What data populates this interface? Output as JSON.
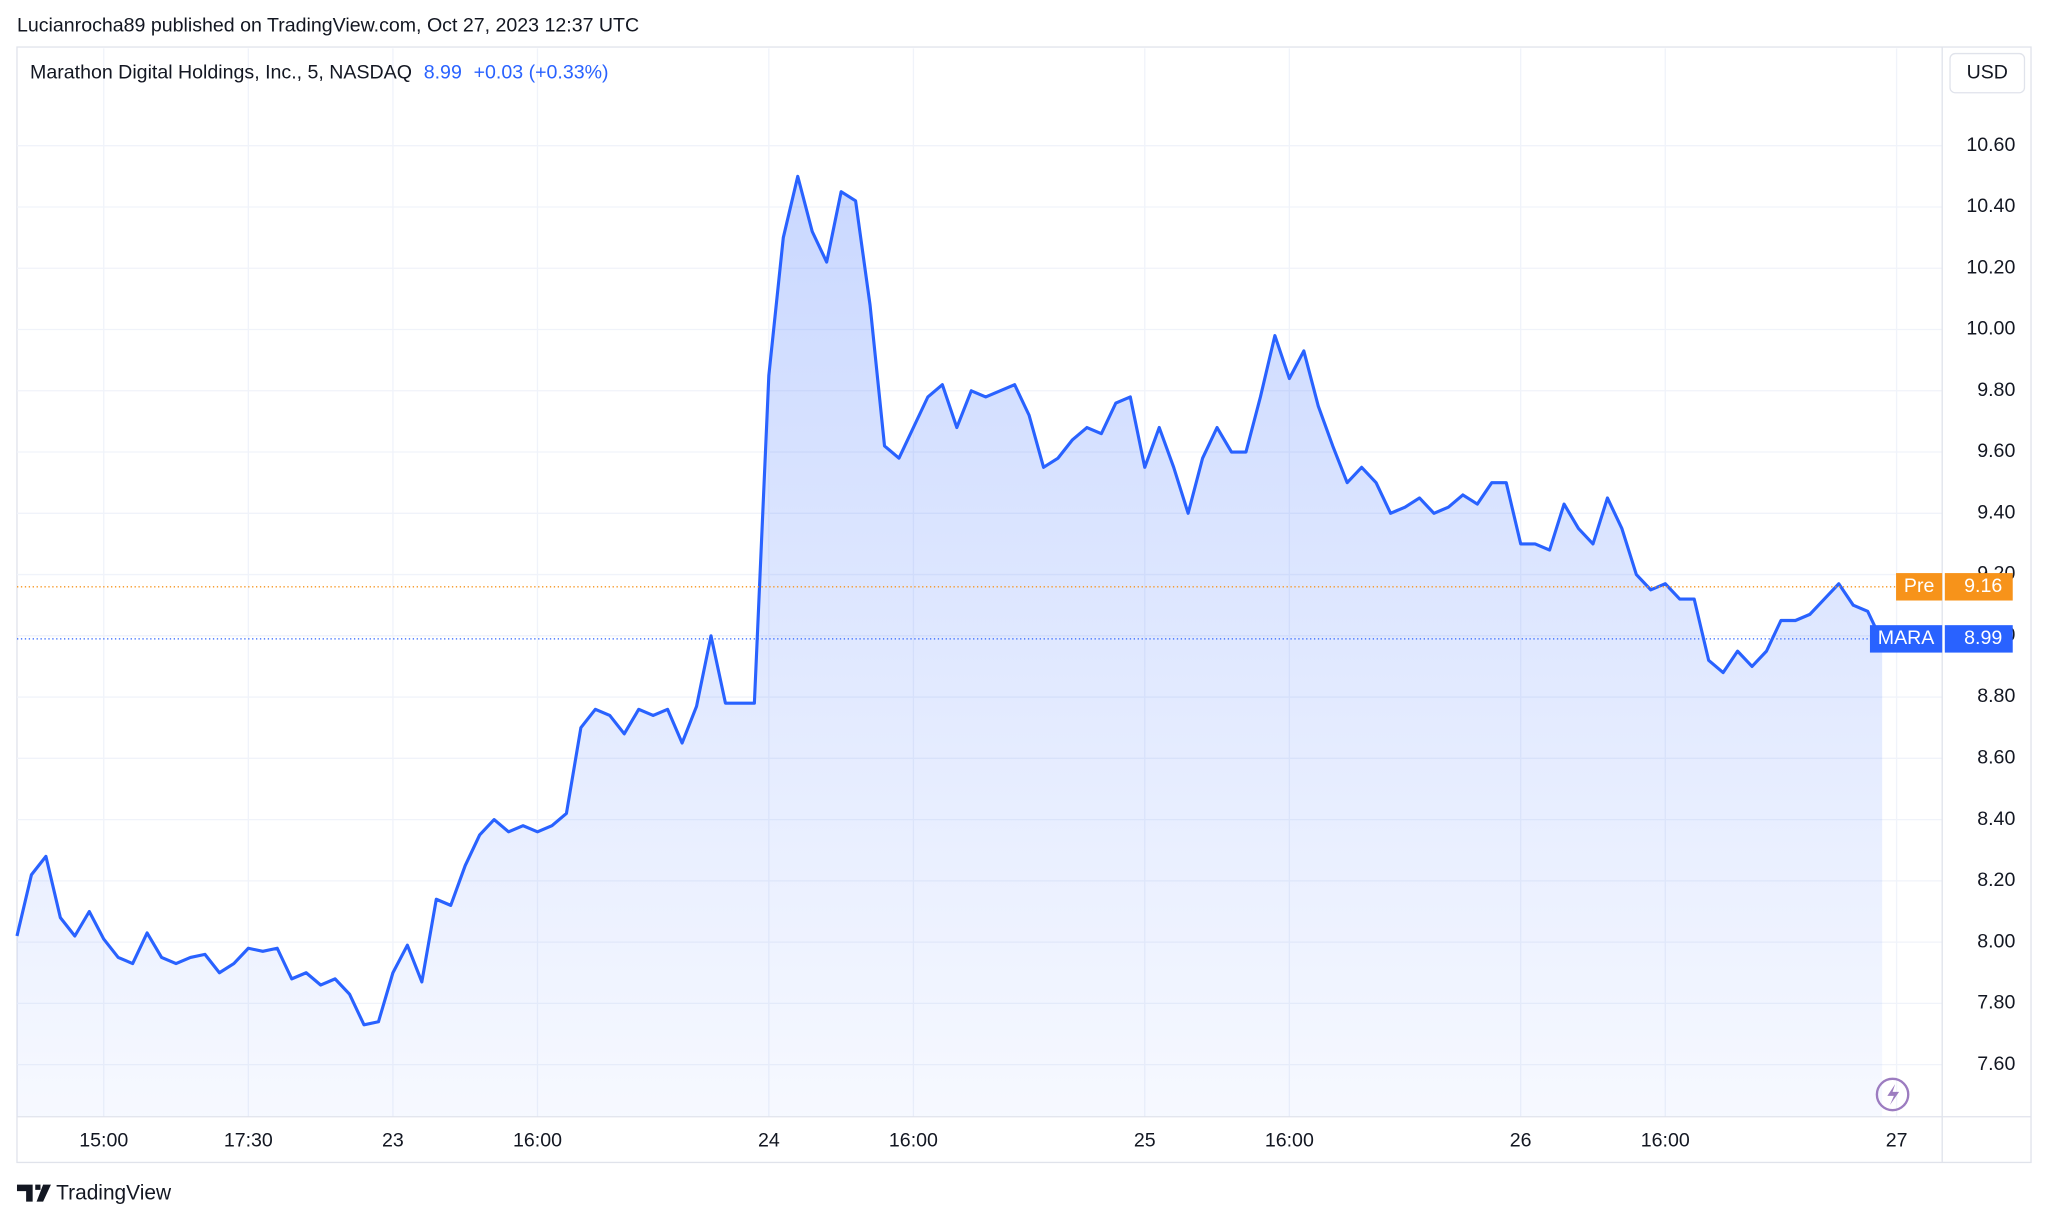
{
  "header": {
    "published": "Lucianrocha89 published on TradingView.com, Oct 27, 2023 12:37 UTC",
    "symbol": "Marathon Digital Holdings, Inc., 5, NASDAQ",
    "last": "8.99",
    "change": "+0.03 (+0.33%)",
    "currency": "USD"
  },
  "footer": {
    "brand": "TradingView"
  },
  "chart_data": {
    "type": "line",
    "color": "#2962ff",
    "categories": [
      null,
      null,
      null,
      null,
      null,
      null,
      "15:00",
      null,
      null,
      null,
      null,
      null,
      null,
      null,
      null,
      null,
      "17:30",
      null,
      null,
      null,
      null,
      null,
      null,
      null,
      null,
      null,
      "23",
      null,
      null,
      null,
      null,
      null,
      null,
      null,
      null,
      null,
      "16:00",
      null,
      null,
      null,
      null,
      null,
      null,
      null,
      null,
      null,
      null,
      null,
      null,
      null,
      null,
      null,
      "24",
      null,
      null,
      null,
      null,
      null,
      null,
      null,
      null,
      null,
      "16:00",
      null,
      null,
      null,
      null,
      null,
      null,
      null,
      null,
      null,
      null,
      null,
      null,
      null,
      null,
      null,
      "25",
      null,
      null,
      null,
      null,
      null,
      null,
      null,
      null,
      null,
      "16:00",
      null,
      null,
      null,
      null,
      null,
      null,
      null,
      null,
      null,
      null,
      null,
      null,
      null,
      null,
      null,
      "26",
      null,
      null,
      null,
      null,
      null,
      null,
      null,
      null,
      null,
      "16:00",
      null,
      null,
      null,
      null,
      null,
      null,
      null,
      null,
      null,
      null,
      null,
      null,
      null,
      null,
      null,
      "27"
    ],
    "values": [
      8.02,
      8.22,
      8.28,
      8.08,
      8.02,
      8.1,
      8.01,
      7.95,
      7.93,
      8.03,
      7.95,
      7.93,
      7.95,
      7.96,
      7.9,
      7.93,
      7.98,
      7.97,
      7.98,
      7.88,
      7.9,
      7.86,
      7.88,
      7.83,
      7.73,
      7.74,
      7.9,
      7.99,
      7.87,
      8.14,
      8.12,
      8.25,
      8.35,
      8.4,
      8.36,
      8.38,
      8.36,
      8.38,
      8.42,
      8.7,
      8.76,
      8.74,
      8.68,
      8.76,
      8.74,
      8.76,
      8.65,
      8.77,
      9.0,
      8.78,
      8.78,
      8.78,
      9.85,
      10.3,
      10.5,
      10.32,
      10.22,
      10.45,
      10.42,
      10.08,
      9.62,
      9.58,
      9.68,
      9.78,
      9.82,
      9.68,
      9.8,
      9.78,
      9.8,
      9.82,
      9.72,
      9.55,
      9.58,
      9.64,
      9.68,
      9.66,
      9.76,
      9.78,
      9.55,
      9.68,
      9.55,
      9.4,
      9.58,
      9.68,
      9.6,
      9.6,
      9.78,
      9.98,
      9.84,
      9.93,
      9.75,
      9.62,
      9.5,
      9.55,
      9.5,
      9.4,
      9.42,
      9.45,
      9.4,
      9.42,
      9.46,
      9.43,
      9.5,
      9.5,
      9.3,
      9.3,
      9.28,
      9.43,
      9.35,
      9.3,
      9.45,
      9.35,
      9.2,
      9.15,
      9.17,
      9.12,
      9.12,
      8.92,
      8.88,
      8.95,
      8.9,
      8.95,
      9.05,
      9.05,
      9.07,
      9.12,
      9.17,
      9.1,
      9.08,
      8.98,
      null
    ],
    "ylim": [
      7.43,
      10.79
    ],
    "yticks": [
      {
        "value": 7.6,
        "label": "7.60"
      },
      {
        "value": 7.8,
        "label": "7.80"
      },
      {
        "value": 8.0,
        "label": "8.00"
      },
      {
        "value": 8.2,
        "label": "8.20"
      },
      {
        "value": 8.4,
        "label": "8.40"
      },
      {
        "value": 8.6,
        "label": "8.60"
      },
      {
        "value": 8.8,
        "label": "8.80"
      },
      {
        "value": 9.0,
        "label": "9.00"
      },
      {
        "value": 9.2,
        "label": "9.20"
      },
      {
        "value": 9.4,
        "label": "9.40"
      },
      {
        "value": 9.6,
        "label": "9.60"
      },
      {
        "value": 9.8,
        "label": "9.80"
      },
      {
        "value": 10.0,
        "label": "10.00"
      },
      {
        "value": 10.2,
        "label": "10.20"
      },
      {
        "value": 10.4,
        "label": "10.40"
      },
      {
        "value": 10.6,
        "label": "10.60"
      }
    ],
    "grid": true,
    "price_lines": [
      {
        "name": "Pre",
        "value": 9.16,
        "color": "#f7931a"
      },
      {
        "name": "MARA",
        "value": 8.99,
        "color": "#2962ff"
      }
    ]
  }
}
